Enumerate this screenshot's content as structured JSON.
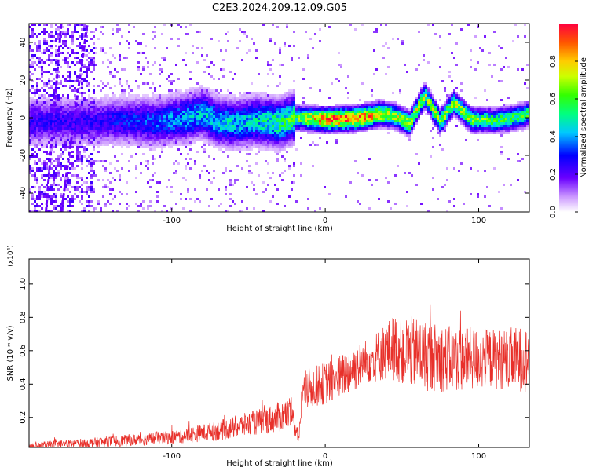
{
  "title": "C2E3.2024.209.12.09.G05",
  "chart_data": [
    {
      "type": "heatmap",
      "xlabel": "Height of straight line (km)",
      "ylabel": "Frequency (Hz)",
      "xlim": [
        -193,
        133
      ],
      "ylim": [
        -50,
        50
      ],
      "x_ticks": [
        -100,
        0,
        100
      ],
      "y_ticks": [
        -40,
        -20,
        0,
        20,
        40
      ],
      "colorbar": {
        "label": "Normalized spectral amplitude",
        "range": [
          0,
          1
        ],
        "ticks": [
          0.0,
          0.2,
          0.4,
          0.6,
          0.8
        ]
      },
      "ridge_profile": [
        {
          "x": -150,
          "y": -2.0
        },
        {
          "x": -130,
          "y": -1.5
        },
        {
          "x": -110,
          "y": -2.5
        },
        {
          "x": -90,
          "y": 0.0
        },
        {
          "x": -80,
          "y": 2.5
        },
        {
          "x": -70,
          "y": -2.0
        },
        {
          "x": -60,
          "y": -3.0
        },
        {
          "x": -45,
          "y": -1.5
        },
        {
          "x": -30,
          "y": -3.0
        },
        {
          "x": -20,
          "y": 0.0
        },
        {
          "x": 0,
          "y": -1.0
        },
        {
          "x": 20,
          "y": -0.5
        },
        {
          "x": 35,
          "y": 2.0
        },
        {
          "x": 45,
          "y": 1.0
        },
        {
          "x": 55,
          "y": -3.0
        },
        {
          "x": 65,
          "y": 12.0
        },
        {
          "x": 75,
          "y": -2.0
        },
        {
          "x": 84,
          "y": 8.0
        },
        {
          "x": 95,
          "y": -1.0
        },
        {
          "x": 110,
          "y": -1.5
        },
        {
          "x": 120,
          "y": -0.5
        },
        {
          "x": 133,
          "y": 2.0
        }
      ],
      "ridge_amplitude": [
        {
          "x": -150,
          "v": 0.25
        },
        {
          "x": -110,
          "v": 0.35
        },
        {
          "x": -80,
          "v": 0.45
        },
        {
          "x": -50,
          "v": 0.45
        },
        {
          "x": -20,
          "v": 0.6
        },
        {
          "x": 0,
          "v": 0.95
        },
        {
          "x": 25,
          "v": 0.95
        },
        {
          "x": 45,
          "v": 0.7
        },
        {
          "x": 65,
          "v": 0.7
        },
        {
          "x": 85,
          "v": 0.7
        },
        {
          "x": 110,
          "v": 0.6
        },
        {
          "x": 133,
          "v": 0.6
        }
      ],
      "streaks": [
        {
          "x0": -182,
          "y0": -50,
          "x1": -172,
          "y1": 50
        },
        {
          "x0": -172,
          "y0": -50,
          "x1": -155,
          "y1": 50
        }
      ]
    },
    {
      "type": "line",
      "xlabel": "Height of straight line (km)",
      "ylabel": "SNR (10 * v/v)",
      "multiplier": "(x10⁴)",
      "xlim": [
        -193,
        133
      ],
      "ylim": [
        0.02,
        1.15
      ],
      "x_ticks": [
        -100,
        0,
        100
      ],
      "y_ticks": [
        0.2,
        0.4,
        0.6,
        0.8,
        1.0
      ],
      "series_color": "#e8302a",
      "envelope": [
        {
          "x": -193,
          "mean": 0.03,
          "spread": 0.02
        },
        {
          "x": -150,
          "mean": 0.05,
          "spread": 0.03
        },
        {
          "x": -100,
          "mean": 0.08,
          "spread": 0.04
        },
        {
          "x": -70,
          "mean": 0.12,
          "spread": 0.06
        },
        {
          "x": -40,
          "mean": 0.18,
          "spread": 0.08
        },
        {
          "x": -22,
          "mean": 0.22,
          "spread": 0.1
        },
        {
          "x": -17,
          "mean": 0.08,
          "spread": 0.04
        },
        {
          "x": -15,
          "mean": 0.36,
          "spread": 0.12
        },
        {
          "x": 5,
          "mean": 0.42,
          "spread": 0.13
        },
        {
          "x": 20,
          "mean": 0.5,
          "spread": 0.14
        },
        {
          "x": 30,
          "mean": 0.55,
          "spread": 0.14
        },
        {
          "x": 45,
          "mean": 0.62,
          "spread": 0.2
        },
        {
          "x": 60,
          "mean": 0.58,
          "spread": 0.22
        },
        {
          "x": 80,
          "mean": 0.55,
          "spread": 0.2
        },
        {
          "x": 110,
          "mean": 0.55,
          "spread": 0.18
        },
        {
          "x": 133,
          "mean": 0.55,
          "spread": 0.2
        }
      ]
    }
  ]
}
